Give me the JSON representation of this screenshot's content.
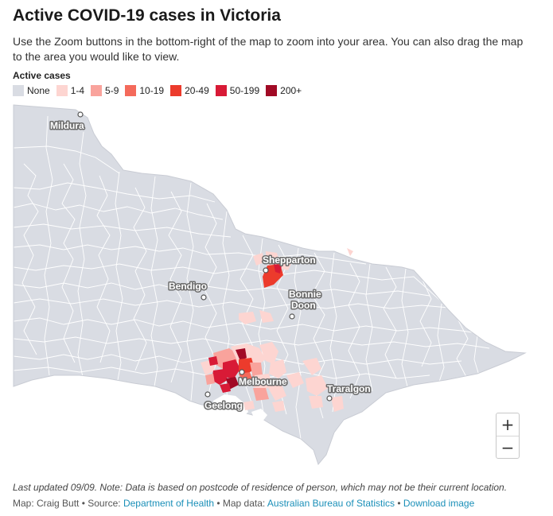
{
  "title": "Active COVID-19 cases in Victoria",
  "subtitle": "Use the Zoom buttons in the bottom-right of the map to zoom into your area. You can also drag the map to the area you would like to view.",
  "legend": {
    "title": "Active cases",
    "items": [
      {
        "label": "None",
        "color": "#d9dce3"
      },
      {
        "label": "1-4",
        "color": "#fdd5d1"
      },
      {
        "label": "5-9",
        "color": "#f9a39c"
      },
      {
        "label": "10-19",
        "color": "#f46a5b"
      },
      {
        "label": "20-49",
        "color": "#ec3b2c"
      },
      {
        "label": "50-199",
        "color": "#d81a36"
      },
      {
        "label": "200+",
        "color": "#a10a25"
      }
    ]
  },
  "map": {
    "base_color": "#d9dce3",
    "boundary_color": "#ffffff",
    "cities": [
      {
        "name": "Mildura"
      },
      {
        "name": "Shepparton"
      },
      {
        "name": "Bendigo"
      },
      {
        "name": "Bonnie"
      },
      {
        "name": "Doon"
      },
      {
        "name": "Melbourne"
      },
      {
        "name": "Traralgon"
      },
      {
        "name": "Geelong"
      }
    ]
  },
  "zoom": {
    "in_label": "+",
    "out_label": "−"
  },
  "footnote": "Last updated 09/09. Note: Data is based on postcode of residence of person, which may not be their current location.",
  "credits": {
    "map_by": "Map: Craig Butt",
    "sep1": " • Source: ",
    "source_link": "Department of Health",
    "sep2": " • Map data: ",
    "mapdata_link": "Australian Bureau of Statistics",
    "sep3": " • ",
    "download_link": "Download image"
  }
}
